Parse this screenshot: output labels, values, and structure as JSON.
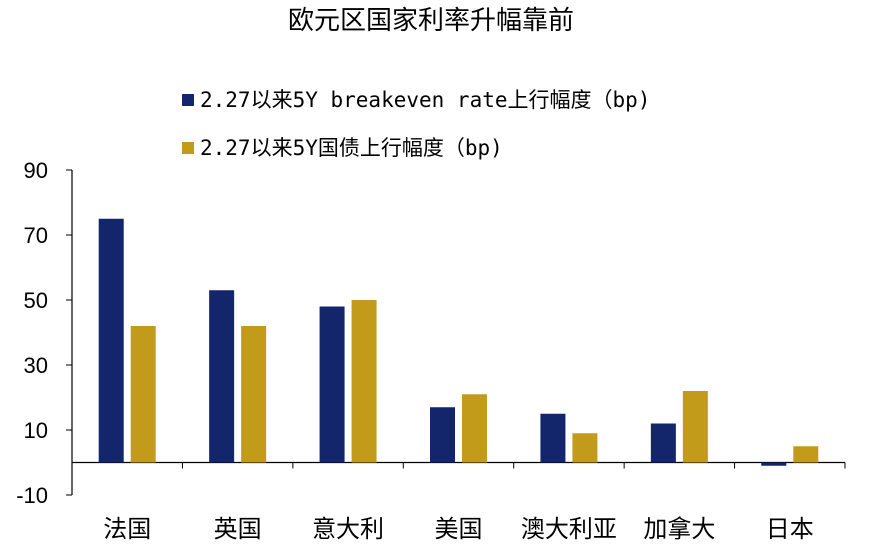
{
  "chart_data": {
    "type": "bar",
    "title": "欧元区国家利率升幅靠前",
    "categories": [
      "法国",
      "英国",
      "意大利",
      "美国",
      "澳大利亚",
      "加拿大",
      "日本"
    ],
    "series": [
      {
        "name": "2.27以来5Y breakeven rate上行幅度（bp)",
        "color": "#13256b",
        "values": [
          75,
          53,
          48,
          17,
          15,
          12,
          -1
        ]
      },
      {
        "name": "2.27以来5Y国债上行幅度（bp)",
        "color": "#c39b1a",
        "values": [
          42,
          42,
          50,
          21,
          9,
          22,
          5
        ]
      }
    ],
    "y_ticks": [
      "90",
      "70",
      "50",
      "30",
      "10",
      "-10"
    ],
    "ylim": [
      -10,
      90
    ],
    "xlabel": "",
    "ylabel": "",
    "legend_position": "top-center",
    "grid": false
  }
}
